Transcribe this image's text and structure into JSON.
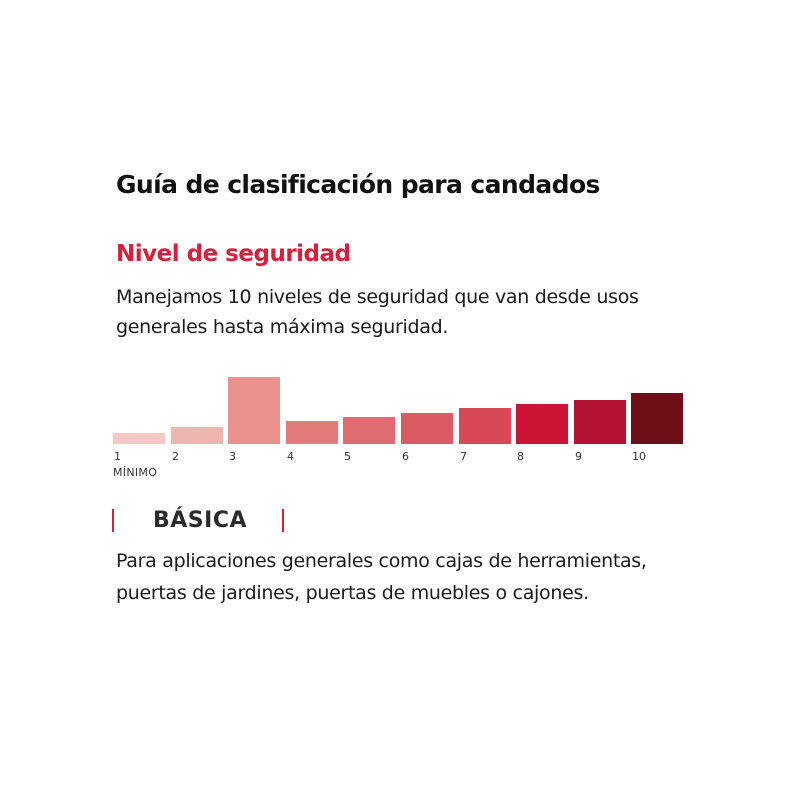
{
  "header": {
    "title": "Guía de clasificación para candados"
  },
  "security_section": {
    "heading": "Nivel de seguridad",
    "description_lines": [
      "Manejamos 10 niveles de seguridad que van desde usos",
      "generales hasta máxima seguridad."
    ]
  },
  "scale": {
    "levels": [
      "1",
      "2",
      "3",
      "4",
      "5",
      "6",
      "7",
      "8",
      "9",
      "10"
    ],
    "selected_level": 3,
    "min_label": "MÍNIMO",
    "colors": [
      "#f2c9c4",
      "#efb6b0",
      "#e8918d",
      "#e27b7a",
      "#df6c70",
      "#dc5a63",
      "#d84856",
      "#cc1437",
      "#b41232",
      "#6e1018"
    ],
    "relative_heights": [
      0.17,
      0.26,
      1.0,
      0.35,
      0.4,
      0.46,
      0.53,
      0.59,
      0.65,
      0.76
    ]
  },
  "current_level": {
    "name": "BÁSICA",
    "description_lines": [
      "Para aplicaciones generales como cajas de herramientas,",
      "puertas de jardines, puertas de muebles o cajones."
    ]
  },
  "accent_color": "#d81f3b"
}
